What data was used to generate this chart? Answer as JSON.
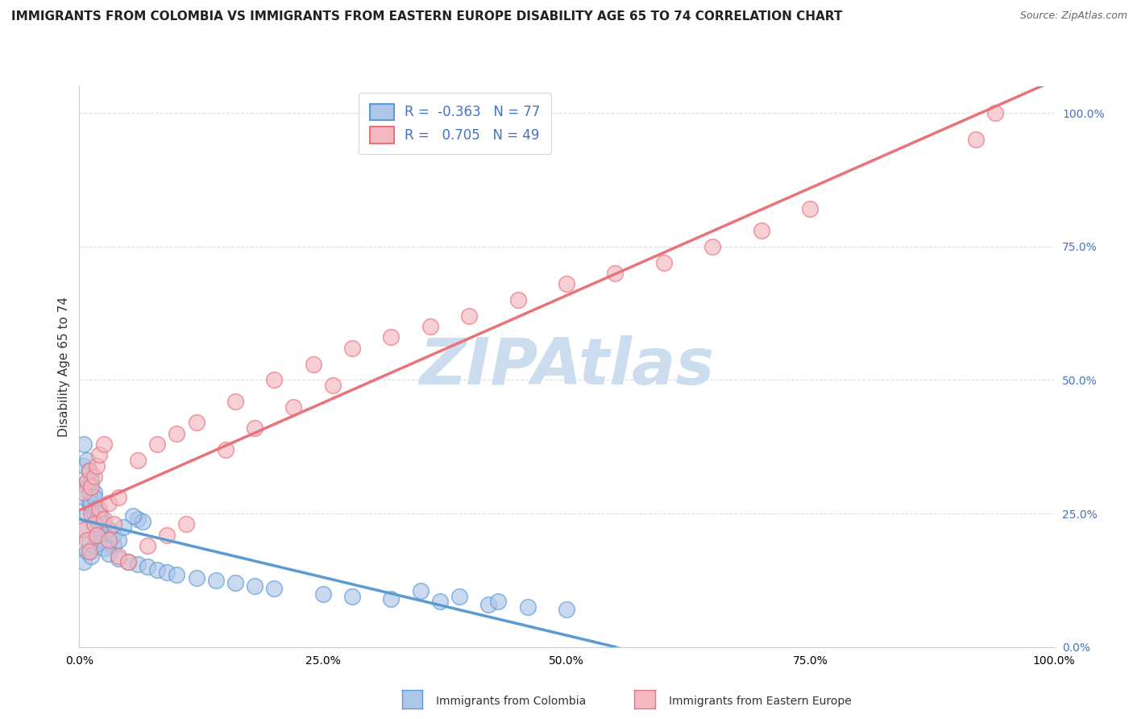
{
  "title": "IMMIGRANTS FROM COLOMBIA VS IMMIGRANTS FROM EASTERN EUROPE DISABILITY AGE 65 TO 74 CORRELATION CHART",
  "source": "Source: ZipAtlas.com",
  "ylabel": "Disability Age 65 to 74",
  "legend1_label": "R =  -0.363   N = 77",
  "legend2_label": "R =   0.705   N = 49",
  "legend1_color": "#aec6e8",
  "legend2_color": "#f4b8c1",
  "trend1_color": "#5b9bd5",
  "trend2_color": "#e8737a",
  "scatter1_color": "#aec6e8",
  "scatter2_color": "#f4b8c1",
  "watermark": "ZIPAtlas",
  "watermark_color": "#ccddf0",
  "ytick_labels": [
    "0.0%",
    "25.0%",
    "50.0%",
    "75.0%",
    "100.0%"
  ],
  "ytick_values": [
    0.0,
    0.25,
    0.5,
    0.75,
    1.0
  ],
  "xtick_labels": [
    "0.0%",
    "25.0%",
    "50.0%",
    "75.0%",
    "100.0%"
  ],
  "xtick_values": [
    0.0,
    0.25,
    0.5,
    0.75,
    1.0
  ],
  "xlim": [
    0.0,
    1.0
  ],
  "ylim": [
    0.0,
    1.05
  ],
  "colombia_x": [
    0.005,
    0.008,
    0.01,
    0.012,
    0.015,
    0.018,
    0.02,
    0.022,
    0.025,
    0.005,
    0.008,
    0.01,
    0.012,
    0.015,
    0.018,
    0.02,
    0.022,
    0.025,
    0.03,
    0.005,
    0.008,
    0.01,
    0.012,
    0.015,
    0.018,
    0.02,
    0.022,
    0.025,
    0.03,
    0.035,
    0.005,
    0.008,
    0.01,
    0.012,
    0.015,
    0.018,
    0.02,
    0.022,
    0.025,
    0.03,
    0.035,
    0.04,
    0.005,
    0.008,
    0.01,
    0.012,
    0.015,
    0.018,
    0.02,
    0.025,
    0.03,
    0.04,
    0.05,
    0.06,
    0.07,
    0.08,
    0.09,
    0.1,
    0.12,
    0.14,
    0.16,
    0.18,
    0.2,
    0.25,
    0.28,
    0.32,
    0.37,
    0.42,
    0.46,
    0.5,
    0.35,
    0.39,
    0.43,
    0.06,
    0.065,
    0.055,
    0.045
  ],
  "colombia_y": [
    0.22,
    0.25,
    0.18,
    0.26,
    0.23,
    0.2,
    0.24,
    0.22,
    0.21,
    0.28,
    0.3,
    0.27,
    0.32,
    0.29,
    0.26,
    0.25,
    0.23,
    0.2,
    0.22,
    0.34,
    0.31,
    0.29,
    0.27,
    0.25,
    0.24,
    0.23,
    0.21,
    0.2,
    0.195,
    0.19,
    0.38,
    0.35,
    0.33,
    0.31,
    0.28,
    0.26,
    0.25,
    0.24,
    0.23,
    0.22,
    0.21,
    0.2,
    0.16,
    0.18,
    0.2,
    0.17,
    0.19,
    0.21,
    0.195,
    0.185,
    0.175,
    0.165,
    0.16,
    0.155,
    0.15,
    0.145,
    0.14,
    0.135,
    0.13,
    0.125,
    0.12,
    0.115,
    0.11,
    0.1,
    0.095,
    0.09,
    0.085,
    0.08,
    0.075,
    0.07,
    0.105,
    0.095,
    0.085,
    0.24,
    0.235,
    0.245,
    0.225
  ],
  "eastern_x": [
    0.005,
    0.008,
    0.01,
    0.012,
    0.015,
    0.018,
    0.02,
    0.025,
    0.03,
    0.035,
    0.04,
    0.005,
    0.008,
    0.01,
    0.012,
    0.015,
    0.018,
    0.02,
    0.025,
    0.03,
    0.06,
    0.08,
    0.1,
    0.12,
    0.16,
    0.2,
    0.24,
    0.28,
    0.32,
    0.04,
    0.05,
    0.07,
    0.09,
    0.11,
    0.15,
    0.18,
    0.22,
    0.26,
    0.36,
    0.4,
    0.45,
    0.5,
    0.55,
    0.6,
    0.65,
    0.7,
    0.75,
    0.92,
    0.94
  ],
  "eastern_y": [
    0.22,
    0.2,
    0.18,
    0.25,
    0.23,
    0.21,
    0.26,
    0.24,
    0.27,
    0.23,
    0.28,
    0.29,
    0.31,
    0.33,
    0.3,
    0.32,
    0.34,
    0.36,
    0.38,
    0.2,
    0.35,
    0.38,
    0.4,
    0.42,
    0.46,
    0.5,
    0.53,
    0.56,
    0.58,
    0.17,
    0.16,
    0.19,
    0.21,
    0.23,
    0.37,
    0.41,
    0.45,
    0.49,
    0.6,
    0.62,
    0.65,
    0.68,
    0.7,
    0.72,
    0.75,
    0.78,
    0.82,
    0.95,
    1.0
  ],
  "background_color": "#ffffff",
  "grid_color": "#dddddd",
  "title_fontsize": 11,
  "axis_label_fontsize": 11,
  "tick_fontsize": 10,
  "legend_fontsize": 12,
  "source_fontsize": 9,
  "bottom_legend_label1": "Immigrants from Colombia",
  "bottom_legend_label2": "Immigrants from Eastern Europe"
}
